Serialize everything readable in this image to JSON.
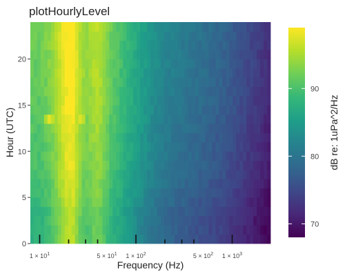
{
  "chart_data": {
    "type": "heatmap",
    "title": "plotHourlyLevel",
    "xlabel": "Frequency (Hz)",
    "ylabel": "Hour (UTC)",
    "x_scale": "log10",
    "xlim": [
      8,
      2500
    ],
    "ylim": [
      0,
      24
    ],
    "y_ticks": [
      0,
      5,
      10,
      15,
      20
    ],
    "x_tick_labels": [
      {
        "value": 10,
        "mantissa": "1",
        "exponent": "1"
      },
      {
        "value": 50,
        "mantissa": "5",
        "exponent": "1"
      },
      {
        "value": 100,
        "mantissa": "1",
        "exponent": "2"
      },
      {
        "value": 500,
        "mantissa": "5",
        "exponent": "2"
      },
      {
        "value": 1000,
        "mantissa": "1",
        "exponent": "3"
      }
    ],
    "x_rug_ticks": [
      10,
      20,
      30,
      40,
      100,
      200,
      300,
      400,
      1000
    ],
    "colorbar": {
      "title": "dB re: 1uPa^2/Hz",
      "range": [
        68,
        99
      ],
      "ticks": [
        70,
        80,
        90
      ],
      "palette": [
        "#440154",
        "#482878",
        "#3e4989",
        "#31688e",
        "#26828e",
        "#1f9e89",
        "#35b779",
        "#6ece58",
        "#b5de2b",
        "#fde725"
      ]
    },
    "level_profile_by_frequency": [
      {
        "hz": 8,
        "db": 90
      },
      {
        "hz": 10,
        "db": 90
      },
      {
        "hz": 12,
        "db": 91
      },
      {
        "hz": 15,
        "db": 93.5
      },
      {
        "hz": 18,
        "db": 97
      },
      {
        "hz": 22,
        "db": 98
      },
      {
        "hz": 26,
        "db": 94
      },
      {
        "hz": 30,
        "db": 92
      },
      {
        "hz": 36,
        "db": 93.5
      },
      {
        "hz": 40,
        "db": 94
      },
      {
        "hz": 45,
        "db": 93
      },
      {
        "hz": 55,
        "db": 90
      },
      {
        "hz": 70,
        "db": 88
      },
      {
        "hz": 100,
        "db": 85
      },
      {
        "hz": 150,
        "db": 82
      },
      {
        "hz": 200,
        "db": 80.5
      },
      {
        "hz": 300,
        "db": 79
      },
      {
        "hz": 500,
        "db": 77.5
      },
      {
        "hz": 800,
        "db": 76
      },
      {
        "hz": 1000,
        "db": 75
      },
      {
        "hz": 1500,
        "db": 73
      },
      {
        "hz": 2000,
        "db": 71.5
      },
      {
        "hz": 2500,
        "db": 70
      }
    ],
    "level_offset_by_hour": [
      {
        "hour": 0,
        "db": -2
      },
      {
        "hour": 3,
        "db": -2
      },
      {
        "hour": 5,
        "db": -1
      },
      {
        "hour": 8,
        "db": 0
      },
      {
        "hour": 12,
        "db": 0.5
      },
      {
        "hour": 14,
        "db": 1
      },
      {
        "hour": 18,
        "db": 1.5
      },
      {
        "hour": 24,
        "db": 2
      }
    ],
    "hotspots": [
      {
        "hz": 13,
        "hour": 13.5,
        "db": 98
      },
      {
        "hz": 26,
        "hour": 13.5,
        "db": 98
      },
      {
        "hz": 40,
        "hour": 13,
        "db": 97
      }
    ]
  }
}
